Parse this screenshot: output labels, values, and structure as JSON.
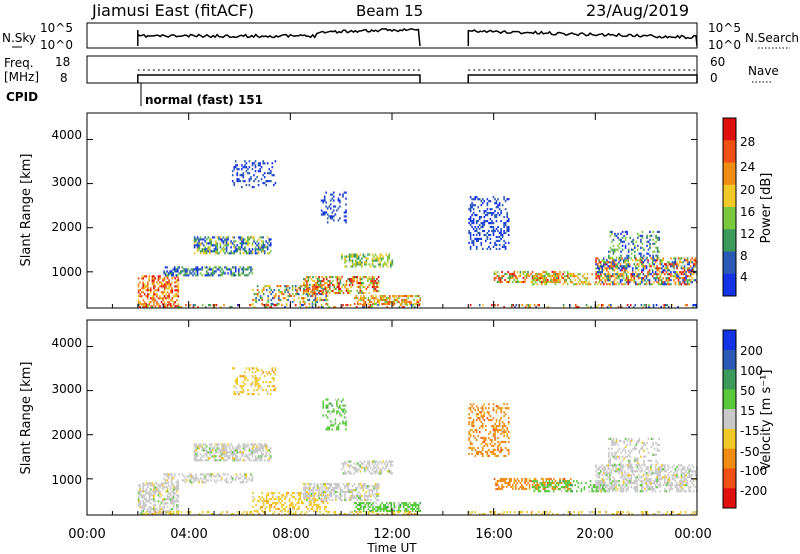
{
  "header": {
    "radar": "Jiamusi East (fitACF)",
    "beam": "Beam 15",
    "date": "23/Aug/2019"
  },
  "noise_panel": {
    "left_label": "N.Sky",
    "right_label": "N.Search",
    "left_ticks": [
      "10^5",
      "10^0"
    ],
    "right_ticks": [
      "10^5",
      "10^0"
    ]
  },
  "freq_panel": {
    "left_label_1": "Freq.",
    "left_label_2": "[MHz]",
    "left_ticks": [
      "18",
      "8"
    ],
    "right_label": "Nave",
    "right_ticks": [
      "60",
      "0"
    ]
  },
  "cpid": {
    "label": "CPID",
    "mode": "normal (fast) 151"
  },
  "colors": {
    "power": [
      "#1432e6",
      "#2a5ab4",
      "#3c9a5a",
      "#7ac83c",
      "#f0c828",
      "#f08c14",
      "#f05014",
      "#e01010"
    ],
    "velocity": [
      "#1432e6",
      "#2a5ab4",
      "#3c9a5a",
      "#5ac83c",
      "#c8c8c8",
      "#f0c828",
      "#f08c14",
      "#f05014",
      "#e01010"
    ]
  },
  "chart_data": [
    {
      "type": "heatmap",
      "panel": "power",
      "ylabel": "Slant Range [km]",
      "yticks": [
        "4000",
        "3000",
        "2000",
        "1000"
      ],
      "ylim": [
        180,
        4600
      ],
      "xlim": [
        0,
        24
      ],
      "colorbar_label": "Power [dB]",
      "colorbar_ticks": [
        "28",
        "24",
        "20",
        "16",
        "12",
        "8",
        "4"
      ],
      "clim": [
        0,
        32
      ],
      "data_gaps_hours": [
        [
          0,
          2
        ],
        [
          13.1,
          15
        ]
      ]
    },
    {
      "type": "heatmap",
      "panel": "velocity",
      "ylabel": "Slant Range [km]",
      "yticks": [
        "4000",
        "3000",
        "2000",
        "1000"
      ],
      "ylim": [
        180,
        4600
      ],
      "xlim": [
        0,
        24
      ],
      "xlabel": "Time UT",
      "xticks": [
        "00:00",
        "04:00",
        "08:00",
        "12:00",
        "16:00",
        "20:00",
        "00:00"
      ],
      "colorbar_label": "Velocity [m s⁻¹]",
      "colorbar_ticks": [
        "200",
        "100",
        "50",
        "15",
        "-15",
        "-50",
        "-100",
        "-200"
      ],
      "data_gaps_hours": [
        [
          0,
          2
        ],
        [
          13.1,
          15
        ]
      ]
    }
  ]
}
